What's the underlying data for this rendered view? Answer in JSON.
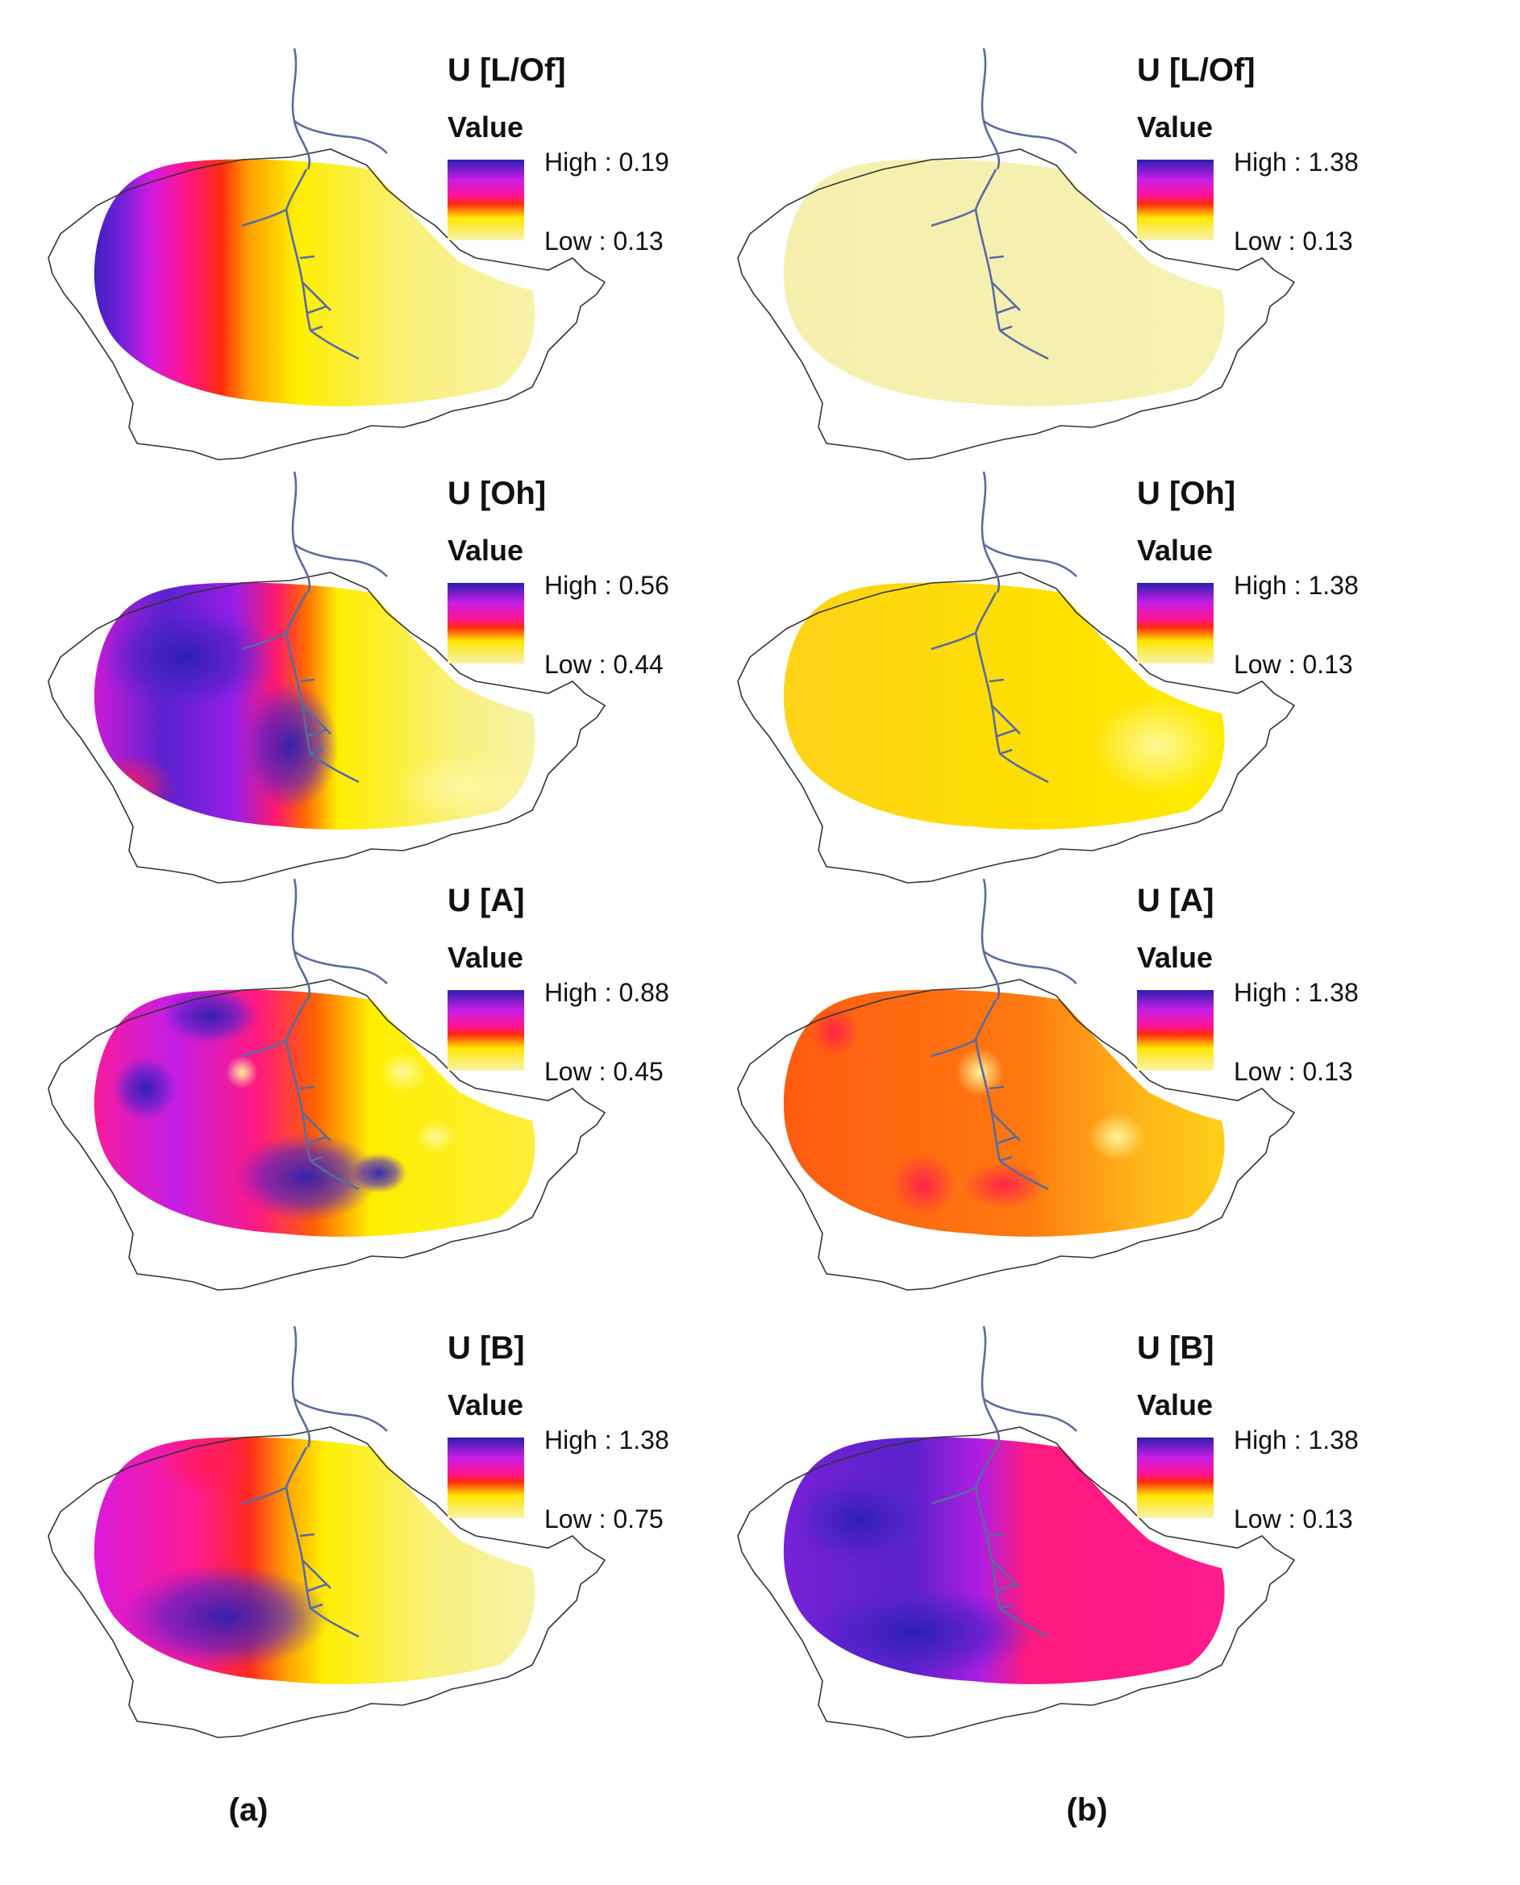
{
  "figure": {
    "column_labels": [
      "(a)",
      "(b)"
    ]
  },
  "legend": {
    "subtitle": "Value",
    "colors": [
      "#2a1fb0",
      "#d11be0",
      "#ff1a1a",
      "#ffd400",
      "#f8f2b0"
    ]
  },
  "maps": [
    {
      "title": "U [L/Of]",
      "high": "High : 0.19",
      "low": "Low : 0.13",
      "palette": "a_lof"
    },
    {
      "title": "U [L/Of]",
      "high": "High : 1.38",
      "low": "Low : 0.13",
      "palette": "b_lof"
    },
    {
      "title": "U [Oh]",
      "high": "High : 0.56",
      "low": "Low : 0.44",
      "palette": "a_oh"
    },
    {
      "title": "U [Oh]",
      "high": "High : 1.38",
      "low": "Low : 0.13",
      "palette": "b_oh"
    },
    {
      "title": "U [A]",
      "high": "High : 0.88",
      "low": "Low : 0.45",
      "palette": "a_a"
    },
    {
      "title": "U [A]",
      "high": "High : 1.38",
      "low": "Low : 0.13",
      "palette": "b_a"
    },
    {
      "title": "U [B]",
      "high": "High : 1.38",
      "low": "Low : 0.75",
      "palette": "a_b"
    },
    {
      "title": "U [B]",
      "high": "High : 1.38",
      "low": "Low : 0.13",
      "palette": "b_b"
    }
  ]
}
